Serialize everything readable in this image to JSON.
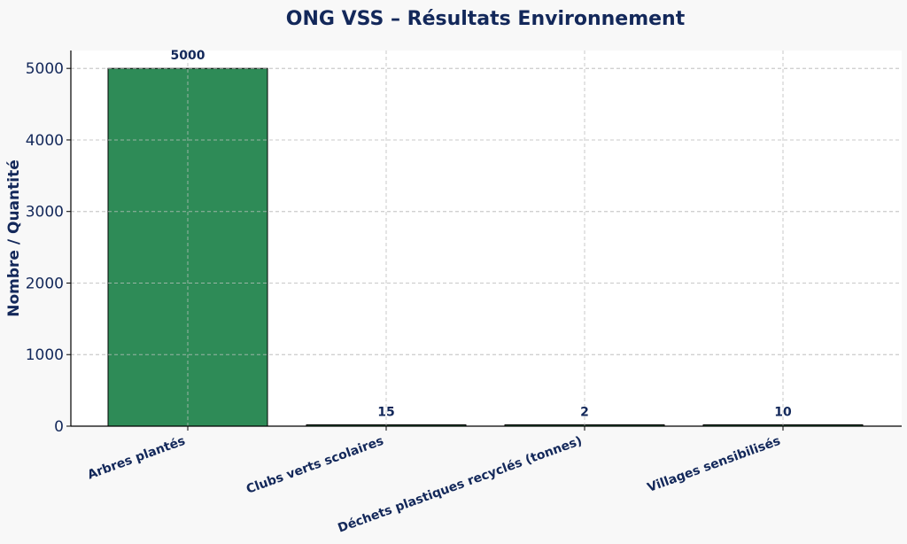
{
  "colors": {
    "background": "#f8f8f8",
    "plot_background": "#ffffff",
    "bar_fill": "#2e8b57",
    "bar_edge": "#000000",
    "text": "#13285a",
    "grid": "#c8c8c8",
    "axis": "#000000"
  },
  "chart_data": {
    "type": "bar",
    "title": "ONG VSS – Résultats Environnement",
    "xlabel": "",
    "ylabel": "Nombre / Quantité",
    "categories": [
      "Arbres plantés",
      "Clubs verts scolaires",
      "Déchets plastiques recyclés (tonnes)",
      "Villages sensibilisés"
    ],
    "values": [
      5000,
      15,
      2,
      10
    ],
    "data_labels": [
      "5000",
      "15",
      "2",
      "10"
    ],
    "ylim": [
      0,
      5250
    ],
    "yticks": [
      0,
      1000,
      2000,
      3000,
      4000,
      5000
    ],
    "ytick_labels": [
      "0",
      "1000",
      "2000",
      "3000",
      "4000",
      "5000"
    ],
    "grid": true,
    "grid_style": "dashed"
  }
}
